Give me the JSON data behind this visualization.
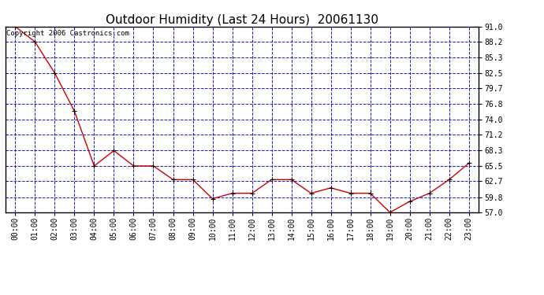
{
  "title": "Outdoor Humidity (Last 24 Hours)  20061130",
  "copyright": "Copyright 2006 Castronics.com",
  "x_labels": [
    "00:00",
    "01:00",
    "02:00",
    "03:00",
    "04:00",
    "05:00",
    "06:00",
    "07:00",
    "08:00",
    "09:00",
    "10:00",
    "11:00",
    "12:00",
    "13:00",
    "14:00",
    "15:00",
    "16:00",
    "17:00",
    "18:00",
    "19:00",
    "20:00",
    "21:00",
    "22:00",
    "23:00"
  ],
  "y_values": [
    91.0,
    88.2,
    82.5,
    75.5,
    65.5,
    68.3,
    65.5,
    65.5,
    63.0,
    63.0,
    59.5,
    60.5,
    60.5,
    63.0,
    63.0,
    60.5,
    61.5,
    60.5,
    60.5,
    57.0,
    59.0,
    60.5,
    63.0,
    66.0
  ],
  "ylim_min": 57.0,
  "ylim_max": 91.0,
  "yticks": [
    57.0,
    59.8,
    62.7,
    65.5,
    68.3,
    71.2,
    74.0,
    76.8,
    79.7,
    82.5,
    85.3,
    88.2,
    91.0
  ],
  "line_color": "#cc0000",
  "marker_color": "#000000",
  "bg_color": "#ffffff",
  "plot_bg_color": "#ffffff",
  "grid_color": "#0000cc",
  "title_color": "#000000",
  "axis_label_color": "#000000",
  "border_color": "#000000",
  "title_fontsize": 11,
  "tick_fontsize": 7,
  "copyright_fontsize": 6.5
}
